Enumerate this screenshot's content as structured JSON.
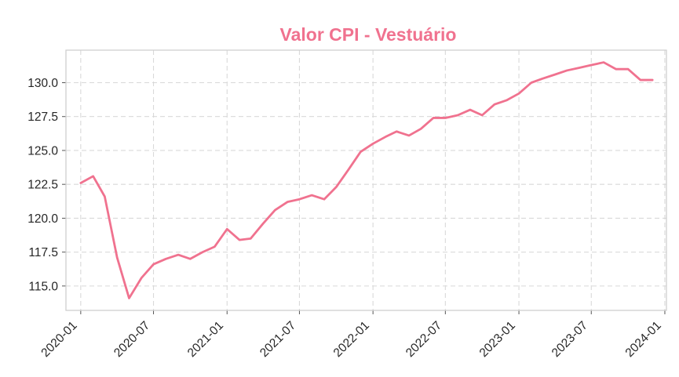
{
  "chart_data": {
    "type": "line",
    "title": "Valor CPI - Vestuário",
    "xlabel": "",
    "ylabel": "",
    "grid": true,
    "ylim": [
      113.2,
      132.4
    ],
    "xlim": [
      "2019-11-25",
      "2024-01-05"
    ],
    "x_ticks": [
      "2020-01",
      "2020-07",
      "2021-01",
      "2021-07",
      "2022-01",
      "2022-07",
      "2023-01",
      "2023-07",
      "2024-01"
    ],
    "y_ticks": [
      "115.0",
      "117.5",
      "120.0",
      "122.5",
      "125.0",
      "127.5",
      "130.0"
    ],
    "colors": {
      "line": "#f0728f",
      "title": "#f0728f",
      "axes_frame": "#cfcfcf",
      "grid": "#d9d9d9"
    },
    "series": [
      {
        "x": [
          "2020-01",
          "2020-02",
          "2020-03",
          "2020-04",
          "2020-05",
          "2020-06",
          "2020-07",
          "2020-08",
          "2020-09",
          "2020-10",
          "2020-11",
          "2020-12",
          "2021-01",
          "2021-02",
          "2021-03",
          "2021-04",
          "2021-05",
          "2021-06",
          "2021-07",
          "2021-08",
          "2021-09",
          "2021-10",
          "2021-11",
          "2021-12",
          "2022-01",
          "2022-02",
          "2022-03",
          "2022-04",
          "2022-05",
          "2022-06",
          "2022-07",
          "2022-08",
          "2022-09",
          "2022-10",
          "2022-11",
          "2022-12",
          "2023-01",
          "2023-02",
          "2023-03",
          "2023-04",
          "2023-05",
          "2023-06",
          "2023-07",
          "2023-08",
          "2023-09",
          "2023-10",
          "2023-11",
          "2023-12"
        ],
        "values": [
          122.6,
          123.1,
          121.6,
          117.1,
          114.1,
          115.6,
          116.6,
          117.0,
          117.3,
          117.0,
          117.5,
          117.9,
          119.2,
          118.4,
          118.5,
          119.6,
          120.6,
          121.2,
          121.4,
          121.7,
          121.4,
          122.3,
          123.6,
          124.9,
          125.5,
          126.0,
          126.4,
          126.1,
          126.6,
          127.4,
          127.4,
          127.6,
          128.0,
          127.6,
          128.4,
          128.7,
          129.2,
          130.0,
          130.3,
          130.6,
          130.9,
          131.1,
          131.3,
          131.5,
          131.0,
          131.0,
          130.2,
          130.2
        ]
      }
    ]
  }
}
